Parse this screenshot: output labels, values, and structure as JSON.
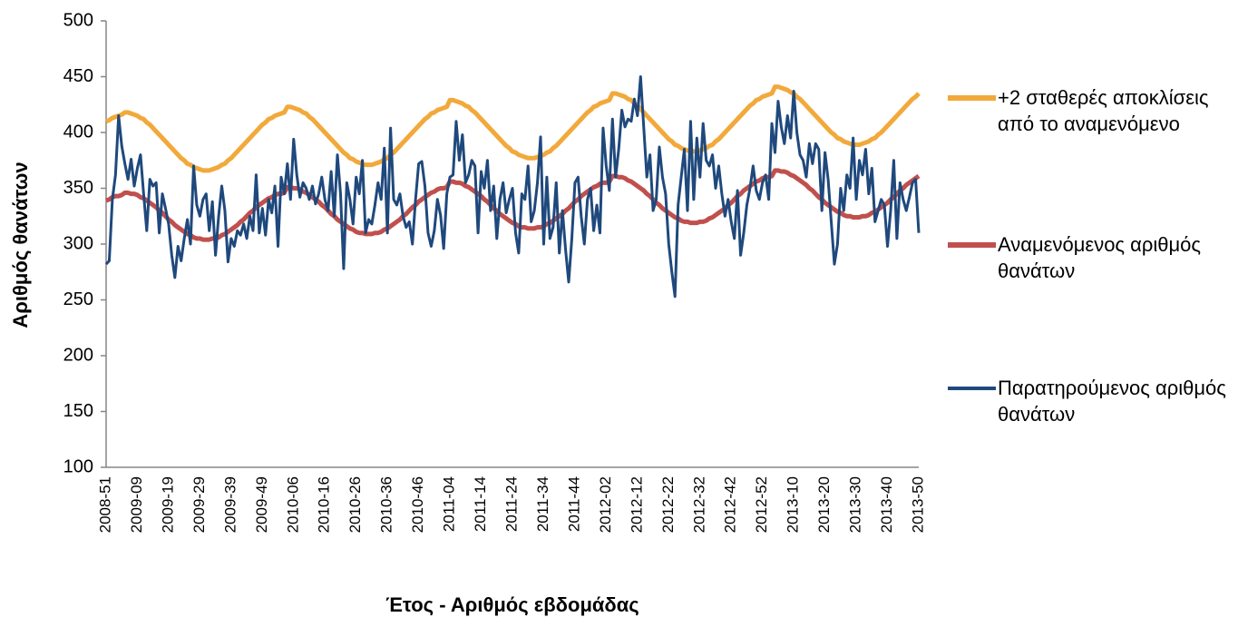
{
  "chart_data": {
    "type": "line",
    "x_label": "Έτος - Αριθμός εβδομάδας",
    "y_label": "Αριθμός θανάτων",
    "ylim": [
      100,
      500
    ],
    "yticks": [
      100,
      150,
      200,
      250,
      300,
      350,
      400,
      450,
      500
    ],
    "grid": false,
    "legend": "right",
    "categories": [
      "2008-51",
      null,
      null,
      null,
      null,
      null,
      null,
      null,
      null,
      null,
      "2009-09",
      null,
      null,
      null,
      null,
      null,
      null,
      null,
      null,
      null,
      "2009-19",
      null,
      null,
      null,
      null,
      null,
      null,
      null,
      null,
      null,
      "2009-29",
      null,
      null,
      null,
      null,
      null,
      null,
      null,
      null,
      null,
      "2009-39",
      null,
      null,
      null,
      null,
      null,
      null,
      null,
      null,
      null,
      "2009-49",
      null,
      null,
      null,
      null,
      null,
      null,
      null,
      null,
      null,
      "2010-06",
      null,
      null,
      null,
      null,
      null,
      null,
      null,
      null,
      null,
      "2010-16",
      null,
      null,
      null,
      null,
      null,
      null,
      null,
      null,
      null,
      "2010-26",
      null,
      null,
      null,
      null,
      null,
      null,
      null,
      null,
      null,
      "2010-36",
      null,
      null,
      null,
      null,
      null,
      null,
      null,
      null,
      null,
      "2010-46",
      null,
      null,
      null,
      null,
      null,
      null,
      null,
      null,
      null,
      "2011-04",
      null,
      null,
      null,
      null,
      null,
      null,
      null,
      null,
      null,
      "2011-14",
      null,
      null,
      null,
      null,
      null,
      null,
      null,
      null,
      null,
      "2011-24",
      null,
      null,
      null,
      null,
      null,
      null,
      null,
      null,
      null,
      "2011-34",
      null,
      null,
      null,
      null,
      null,
      null,
      null,
      null,
      null,
      "2011-44",
      null,
      null,
      null,
      null,
      null,
      null,
      null,
      null,
      null,
      "2012-02",
      null,
      null,
      null,
      null,
      null,
      null,
      null,
      null,
      null,
      "2012-12",
      null,
      null,
      null,
      null,
      null,
      null,
      null,
      null,
      null,
      "2012-22",
      null,
      null,
      null,
      null,
      null,
      null,
      null,
      null,
      null,
      "2012-32",
      null,
      null,
      null,
      null,
      null,
      null,
      null,
      null,
      null,
      "2012-42",
      null,
      null,
      null,
      null,
      null,
      null,
      null,
      null,
      null,
      "2012-52",
      null,
      null,
      null,
      null,
      null,
      null,
      null,
      null,
      null,
      "2013-10",
      null,
      null,
      null,
      null,
      null,
      null,
      null,
      null,
      null,
      "2013-20",
      null,
      null,
      null,
      null,
      null,
      null,
      null,
      null,
      null,
      "2013-30",
      null,
      null,
      null,
      null,
      null,
      null,
      null,
      null,
      null,
      "2013-40",
      null,
      null,
      null,
      null,
      null,
      null,
      null,
      null,
      null,
      "2013-50"
    ],
    "series": [
      {
        "name": "+2 σταθερές αποκλίσεις από το αναμενόμενο",
        "color": "#F2A93B",
        "width": 5,
        "values": [
          410,
          411,
          413,
          414,
          415,
          416,
          418,
          418,
          417,
          416,
          415,
          413,
          412,
          409,
          407,
          404,
          401,
          398,
          395,
          392,
          389,
          386,
          383,
          380,
          377,
          375,
          372,
          371,
          369,
          368,
          367,
          366,
          366,
          366,
          367,
          368,
          369,
          371,
          372,
          375,
          377,
          380,
          383,
          386,
          389,
          392,
          395,
          398,
          401,
          404,
          407,
          409,
          412,
          413,
          415,
          416,
          417,
          418,
          423,
          423,
          422,
          421,
          420,
          418,
          417,
          414,
          412,
          409,
          406,
          403,
          400,
          397,
          394,
          391,
          388,
          385,
          382,
          380,
          377,
          376,
          374,
          373,
          372,
          371,
          371,
          371,
          372,
          373,
          374,
          376,
          377,
          380,
          382,
          385,
          388,
          391,
          394,
          397,
          400,
          403,
          406,
          409,
          412,
          414,
          417,
          418,
          420,
          421,
          422,
          423,
          429,
          429,
          428,
          427,
          426,
          424,
          423,
          420,
          418,
          415,
          412,
          409,
          406,
          403,
          400,
          397,
          394,
          391,
          388,
          386,
          383,
          382,
          380,
          379,
          378,
          377,
          377,
          377,
          378,
          379,
          380,
          382,
          383,
          386,
          388,
          391,
          394,
          397,
          400,
          403,
          406,
          409,
          412,
          415,
          418,
          420,
          423,
          424,
          426,
          427,
          428,
          429,
          435,
          435,
          434,
          433,
          432,
          430,
          429,
          426,
          424,
          421,
          418,
          415,
          412,
          409,
          406,
          403,
          400,
          397,
          394,
          392,
          389,
          388,
          386,
          385,
          384,
          383,
          383,
          383,
          384,
          385,
          386,
          388,
          389,
          392,
          394,
          397,
          400,
          403,
          406,
          409,
          412,
          415,
          418,
          421,
          424,
          426,
          429,
          430,
          432,
          433,
          434,
          435,
          441,
          441,
          440,
          439,
          438,
          436,
          435,
          432,
          430,
          427,
          424,
          421,
          418,
          415,
          412,
          409,
          406,
          403,
          400,
          398,
          395,
          394,
          392,
          391,
          390,
          389,
          389,
          389,
          390,
          391,
          392,
          394,
          395,
          398,
          400,
          403,
          406,
          409,
          412,
          415,
          418,
          421,
          424,
          427,
          430,
          432,
          435
        ]
      },
      {
        "name": "Αναμενόμενος αριθμός θανάτων",
        "color": "#C0504D",
        "width": 5,
        "values": [
          339,
          340,
          342,
          343,
          343,
          344,
          346,
          346,
          345,
          345,
          344,
          342,
          341,
          339,
          337,
          335,
          333,
          330,
          328,
          325,
          322,
          320,
          317,
          315,
          313,
          311,
          309,
          308,
          306,
          305,
          305,
          304,
          304,
          304,
          305,
          305,
          306,
          308,
          309,
          311,
          313,
          315,
          317,
          320,
          322,
          325,
          328,
          330,
          333,
          335,
          337,
          339,
          341,
          342,
          344,
          345,
          345,
          346,
          351,
          351,
          350,
          350,
          349,
          347,
          346,
          344,
          342,
          340,
          338,
          335,
          333,
          330,
          327,
          325,
          322,
          320,
          318,
          316,
          314,
          313,
          311,
          310,
          310,
          309,
          309,
          309,
          310,
          310,
          311,
          313,
          314,
          316,
          318,
          320,
          322,
          325,
          327,
          330,
          333,
          335,
          338,
          340,
          342,
          344,
          346,
          347,
          349,
          350,
          350,
          351,
          356,
          356,
          355,
          355,
          354,
          352,
          351,
          349,
          347,
          345,
          343,
          340,
          338,
          335,
          332,
          330,
          327,
          325,
          323,
          321,
          319,
          318,
          316,
          315,
          315,
          314,
          314,
          314,
          315,
          315,
          316,
          318,
          319,
          321,
          323,
          325,
          327,
          330,
          332,
          335,
          338,
          340,
          343,
          345,
          347,
          349,
          351,
          352,
          354,
          355,
          355,
          356,
          361,
          361,
          360,
          360,
          359,
          357,
          356,
          354,
          352,
          350,
          348,
          345,
          343,
          340,
          337,
          335,
          332,
          330,
          328,
          326,
          324,
          323,
          321,
          320,
          320,
          319,
          319,
          319,
          320,
          320,
          321,
          323,
          324,
          326,
          328,
          330,
          332,
          335,
          337,
          340,
          343,
          345,
          348,
          350,
          352,
          354,
          356,
          357,
          359,
          360,
          360,
          361,
          366,
          366,
          365,
          365,
          364,
          362,
          361,
          359,
          357,
          355,
          353,
          350,
          348,
          345,
          342,
          340,
          337,
          335,
          333,
          331,
          329,
          328,
          326,
          325,
          325,
          324,
          324,
          324,
          325,
          325,
          326,
          328,
          329,
          331,
          333,
          335,
          337,
          340,
          342,
          345,
          348,
          350,
          353,
          355,
          357,
          359,
          361
        ]
      },
      {
        "name": "Παρατηρούμενος αριθμός θανάτων",
        "color": "#1F497D",
        "width": 3,
        "values": [
          282,
          285,
          340,
          362,
          415,
          388,
          372,
          358,
          376,
          352,
          368,
          380,
          345,
          312,
          358,
          352,
          355,
          310,
          345,
          332,
          318,
          290,
          270,
          298,
          285,
          305,
          322,
          300,
          370,
          335,
          325,
          340,
          345,
          312,
          338,
          290,
          325,
          352,
          330,
          284,
          305,
          298,
          312,
          308,
          318,
          305,
          325,
          312,
          362,
          310,
          332,
          308,
          340,
          328,
          352,
          298,
          360,
          345,
          372,
          340,
          394,
          362,
          342,
          355,
          350,
          340,
          352,
          336,
          345,
          360,
          340,
          330,
          365,
          325,
          380,
          345,
          278,
          355,
          340,
          318,
          360,
          345,
          375,
          310,
          322,
          318,
          335,
          355,
          340,
          386,
          310,
          404,
          340,
          335,
          345,
          325,
          315,
          320,
          300,
          340,
          372,
          374,
          352,
          310,
          298,
          312,
          340,
          326,
          296,
          345,
          360,
          362,
          410,
          375,
          398,
          355,
          362,
          375,
          370,
          310,
          365,
          350,
          375,
          330,
          352,
          305,
          340,
          355,
          328,
          340,
          350,
          310,
          292,
          345,
          340,
          370,
          320,
          330,
          355,
          396,
          300,
          360,
          305,
          315,
          355,
          292,
          330,
          295,
          266,
          305,
          355,
          360,
          325,
          300,
          340,
          350,
          312,
          335,
          310,
          404,
          370,
          348,
          412,
          360,
          385,
          420,
          405,
          412,
          410,
          430,
          415,
          450,
          405,
          360,
          380,
          330,
          340,
          387,
          360,
          345,
          300,
          275,
          253,
          335,
          360,
          385,
          330,
          410,
          340,
          395,
          360,
          408,
          375,
          370,
          380,
          350,
          370,
          345,
          325,
          340,
          320,
          305,
          348,
          290,
          310,
          335,
          350,
          370,
          348,
          340,
          355,
          362,
          340,
          408,
          382,
          428,
          405,
          390,
          415,
          395,
          437,
          400,
          380,
          375,
          360,
          390,
          372,
          390,
          385,
          330,
          382,
          358,
          320,
          282,
          300,
          350,
          330,
          362,
          350,
          395,
          340,
          375,
          362,
          385,
          345,
          368,
          320,
          330,
          340,
          335,
          298,
          330,
          375,
          305,
          355,
          340,
          330,
          342,
          355,
          358,
          310
        ]
      }
    ]
  }
}
